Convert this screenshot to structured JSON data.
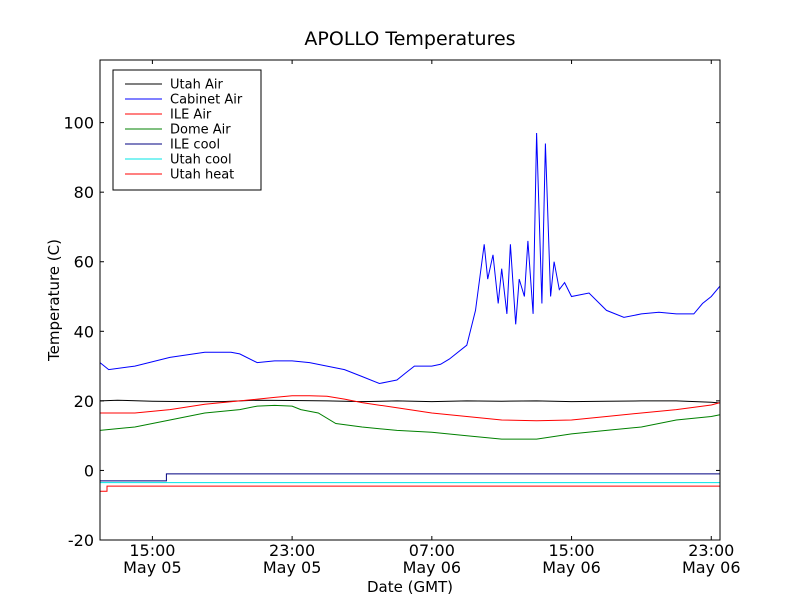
{
  "chart_data": {
    "type": "line",
    "title": "APOLLO Temperatures",
    "xlabel": "Date (GMT)",
    "ylabel": "Temperature (C)",
    "x_unit": "hours since May 05 12:00 GMT",
    "xlim": [
      0,
      35.5
    ],
    "ylim": [
      -20,
      118
    ],
    "yticks": [
      -20,
      0,
      20,
      40,
      60,
      80,
      100
    ],
    "xticks": [
      {
        "x": 3,
        "time": "15:00",
        "date": "May 05"
      },
      {
        "x": 11,
        "time": "23:00",
        "date": "May 05"
      },
      {
        "x": 19,
        "time": "07:00",
        "date": "May 06"
      },
      {
        "x": 27,
        "time": "15:00",
        "date": "May 06"
      },
      {
        "x": 35,
        "time": "23:00",
        "date": "May 06"
      }
    ],
    "legend_position": "top-left",
    "series": [
      {
        "name": "Utah Air",
        "color": "#000000",
        "x": [
          0,
          1,
          3,
          5,
          7,
          9,
          11,
          13,
          15,
          17,
          19,
          21,
          23,
          25,
          27,
          29,
          31,
          33,
          35,
          35.5
        ],
        "y": [
          20,
          20.2,
          19.9,
          19.8,
          19.8,
          20.2,
          20.1,
          20,
          19.8,
          20,
          19.8,
          20,
          19.9,
          20,
          19.8,
          19.9,
          20,
          20,
          19.6,
          19.4
        ]
      },
      {
        "name": "Cabinet Air",
        "color": "#0000ff",
        "x": [
          0,
          0.5,
          2,
          4,
          6,
          7.5,
          8,
          9,
          10,
          11,
          12,
          13,
          14,
          15,
          16,
          17,
          17.5,
          18,
          18.5,
          19,
          19.5,
          20,
          21,
          21.5,
          22,
          22.2,
          22.5,
          22.8,
          23,
          23.3,
          23.5,
          23.8,
          24,
          24.3,
          24.5,
          24.8,
          25,
          25.3,
          25.5,
          25.8,
          26,
          26.3,
          26.6,
          27,
          28,
          29,
          30,
          31,
          32,
          33,
          34,
          34.5,
          35,
          35.5
        ],
        "y": [
          31,
          29,
          30,
          32.5,
          34,
          34,
          33.5,
          31,
          31.5,
          31.5,
          31,
          30,
          29,
          27,
          25,
          26,
          28,
          30,
          30,
          30,
          30.5,
          32,
          36,
          46,
          65,
          55,
          62,
          48,
          58,
          45,
          65,
          42,
          55,
          50,
          66,
          45,
          97,
          48,
          94,
          50,
          60,
          52,
          54,
          50,
          51,
          46,
          44,
          45,
          45.5,
          45,
          45,
          48,
          50,
          53
        ]
      },
      {
        "name": "ILE Air",
        "color": "#ff0000",
        "x": [
          0,
          2,
          4,
          6,
          8,
          10,
          11,
          12,
          13,
          14,
          15,
          17,
          19,
          21,
          23,
          25,
          27,
          29,
          31,
          33,
          35,
          35.5
        ],
        "y": [
          16.5,
          16.5,
          17.5,
          19,
          20,
          21,
          21.5,
          21.5,
          21.3,
          20.5,
          19.5,
          18,
          16.5,
          15.5,
          14.5,
          14.3,
          14.5,
          15.5,
          16.5,
          17.5,
          18.8,
          19.5
        ]
      },
      {
        "name": "Dome Air",
        "color": "#008000",
        "x": [
          0,
          2,
          4,
          6,
          8,
          9,
          10,
          11,
          11.5,
          12.5,
          13.5,
          15,
          17,
          19,
          21,
          23,
          25,
          27,
          29,
          31,
          33,
          35,
          35.5
        ],
        "y": [
          11.5,
          12.5,
          14.5,
          16.5,
          17.5,
          18.5,
          18.7,
          18.5,
          17.5,
          16.5,
          13.5,
          12.5,
          11.5,
          11,
          10,
          9,
          9,
          10.5,
          11.5,
          12.5,
          14.5,
          15.5,
          16
        ]
      },
      {
        "name": "ILE cool",
        "color": "#000080",
        "x": [
          0,
          3.8,
          3.8,
          35.5
        ],
        "y": [
          -3,
          -3,
          -1,
          -1
        ]
      },
      {
        "name": "Utah cool",
        "color": "#00e6e6",
        "x": [
          0,
          35.5
        ],
        "y": [
          -3.5,
          -3.5
        ]
      },
      {
        "name": "Utah heat",
        "color": "#ff0000",
        "x": [
          0,
          0.4,
          0.4,
          35.5
        ],
        "y": [
          -6,
          -6,
          -4.5,
          -4.5
        ]
      }
    ]
  }
}
